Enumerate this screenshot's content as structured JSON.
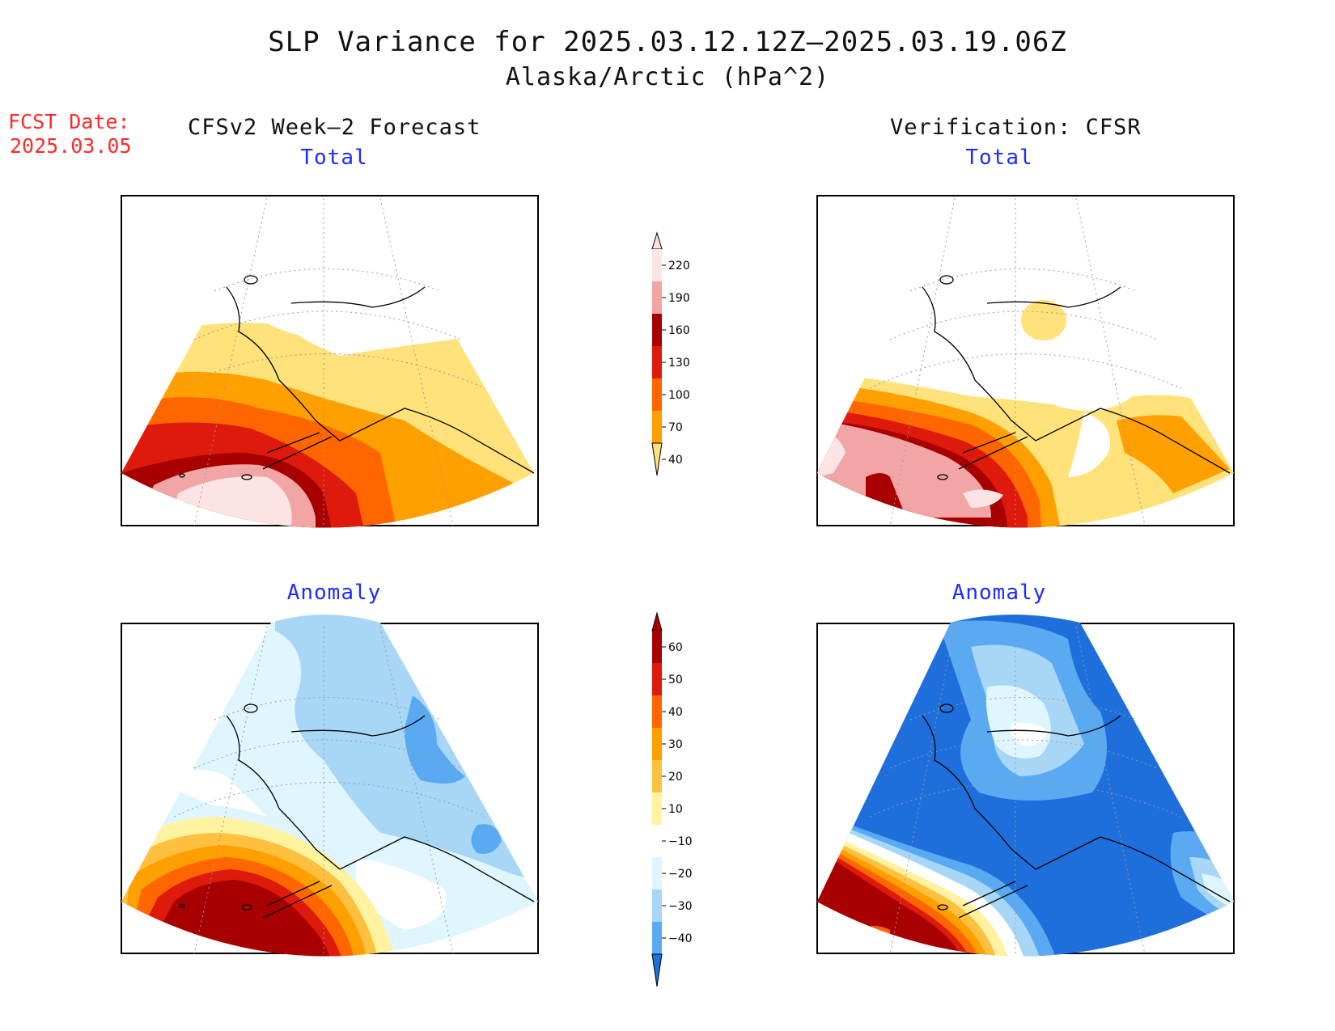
{
  "title": "SLP Variance for 2025.03.12.12Z–2025.03.19.06Z",
  "subtitle": "Alaska/Arctic (hPa^2)",
  "fcst_date_label": "FCST Date:",
  "fcst_date_value": "2025.03.05",
  "left_header": "CFSv2 Week–2 Forecast",
  "right_header": "Verification: CFSR",
  "panels": {
    "forecast_total": {
      "title": "Total"
    },
    "verification_total": {
      "title": "Total"
    },
    "forecast_anomaly": {
      "title": "Anomaly"
    },
    "verification_anomaly": {
      "title": "Anomaly"
    }
  },
  "colorbars": {
    "total": {
      "labels": [
        "220",
        "190",
        "160",
        "130",
        "100",
        "70",
        "40"
      ],
      "colors": [
        "#fde4e4",
        "#f2a5a5",
        "#a80000",
        "#dd1a0c",
        "#ff6600",
        "#ffa000",
        "#ffe27a"
      ]
    },
    "anomaly": {
      "labels": [
        "60",
        "50",
        "40",
        "30",
        "20",
        "10",
        "−10",
        "−20",
        "−30",
        "−40"
      ],
      "colors": [
        "#a80000",
        "#dd1a0c",
        "#ff6600",
        "#ffa000",
        "#ffc040",
        "#fff3a0",
        "#ffffff",
        "#dff6ff",
        "#a8d6f7",
        "#5aaaf2",
        "#1e6fdc"
      ]
    }
  }
}
